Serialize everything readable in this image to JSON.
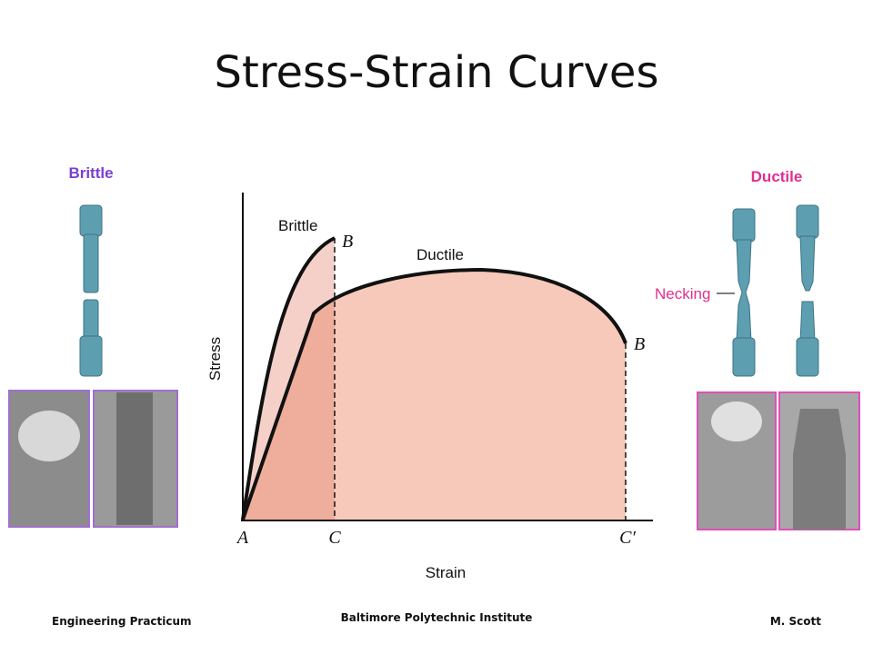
{
  "title": "Stress-Strain Curves",
  "left_panel": {
    "label": "Brittle"
  },
  "right_panel": {
    "label": "Ductile",
    "necking_label": "Necking"
  },
  "diagram": {
    "y_axis_label": "Stress",
    "x_axis_label": "Strain",
    "curves": [
      {
        "label": "Brittle",
        "end_point": "B"
      },
      {
        "label": "Ductile",
        "end_point": "B"
      }
    ],
    "origin": "A",
    "strain_points": [
      "C",
      "C′"
    ]
  },
  "footer": {
    "left": "Engineering Practicum",
    "center": "Baltimore Polytechnic Institute",
    "right": "M. Scott"
  }
}
